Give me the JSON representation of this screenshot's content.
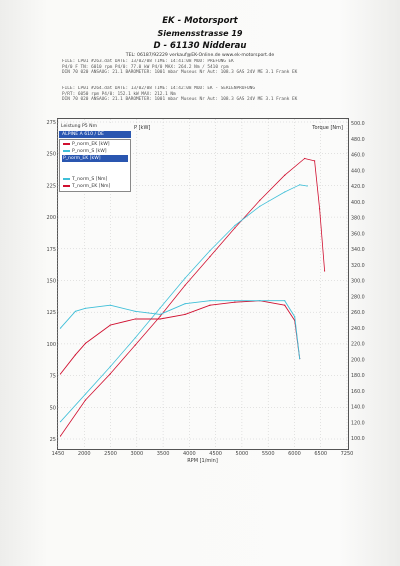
{
  "header": {
    "company": "EK - Motorsport",
    "street": "Siemensstrasse 19",
    "city": "D - 61130 Nidderau",
    "contact": "TEL: 06187/92229   verkauf@EK-Online.de   www.ek-motorsport.de"
  },
  "run_info_1": [
    "FILE: LP01 #263.dat  DATE: 13/02/08  TIME: 14:41:08  MOD: PREFUNG EK",
    "P4/0 F TN: 6010 rpm  P4/0: 77.0 kW  P4/0 MAX: 264.2 Nm / 5410 rpm",
    "DIN 70 020  ANSAUG: 21.1  BAROMETER: 1001 mbar  Museus Nr  Aut: 108.3 GAS 24V ME 3.1  Frank EK",
    ""
  ],
  "run_info_2": [
    "FILE: LP01 #264.dat  DATE: 13/02/08  TIME: 14:42:08  MOD: EK - SERIENPRUFUNG",
    "P/RT: 6050 rpm  P4/0: 152.1 kW  MAX: 212.1 Nm",
    "DIN 70 020  ANSAUG: 21.1  BAROMETER: 1001 mbar  Museus Nr  Aut: 108.3 GAS 24V ME 3.1  Frank EK",
    ""
  ],
  "chart_data": {
    "type": "line",
    "legend_title": "Leistung P5 Nm",
    "run_label": "ALPINE A 610 / DE",
    "legend_selected": "P_norm_EK [kW]",
    "xlabel": "RPM [1/min]",
    "x_ticks": [
      "1450",
      "2000",
      "2500",
      "3000",
      "3500",
      "4000",
      "4500",
      "5000",
      "5500",
      "6000",
      "6500",
      "7250"
    ],
    "xlim": [
      1450,
      7250
    ],
    "ylabel_left": "P [kW]",
    "ylabel_right": "Torque [Nm]",
    "left_ticks": [
      "275",
      "250",
      "225",
      "200",
      "175",
      "150",
      "125",
      "100",
      "75",
      "50",
      "25"
    ],
    "ylim_left": [
      0,
      275
    ],
    "right_ticks": [
      "500.0",
      "480.0",
      "460.0",
      "440.0",
      "420.0",
      "400.0",
      "380.0",
      "360.0",
      "340.0",
      "320.0",
      "300.0",
      "280.0",
      "260.0",
      "240.0",
      "220.0",
      "200.0",
      "180.0",
      "160.0",
      "140.0",
      "120.0",
      "100.0"
    ],
    "ylim_right": [
      82.9,
      514.1
    ],
    "series": [
      {
        "name": "P_norm_EK [kW]",
        "color": "#d01030",
        "axis": "left",
        "x": [
          1500,
          2000,
          2500,
          3000,
          3500,
          4000,
          4500,
          5000,
          5500,
          6000,
          6400,
          6600,
          6700,
          6800
        ],
        "y": [
          10,
          40,
          62,
          86,
          110,
          136,
          160,
          184,
          207,
          228,
          242,
          240,
          200,
          148
        ]
      },
      {
        "name": "P_norm_S [kW]",
        "color": "#3fbfd8",
        "axis": "left",
        "x": [
          1500,
          2000,
          2500,
          3000,
          3500,
          4000,
          4500,
          5000,
          5500,
          6000,
          6300,
          6450
        ],
        "y": [
          22,
          45,
          68,
          92,
          117,
          142,
          165,
          186,
          202,
          214,
          220,
          219
        ]
      },
      {
        "name": "T_norm_EK [Nm]",
        "color": "#d01030",
        "axis": "right",
        "x": [
          1500,
          1800,
          2000,
          2500,
          3000,
          3500,
          4000,
          4500,
          5000,
          5500,
          6000,
          6200,
          6300
        ],
        "y": [
          180,
          205,
          220,
          244,
          252,
          252,
          258,
          270,
          274,
          276,
          270,
          250,
          200
        ]
      },
      {
        "name": "T_norm_S [Nm]",
        "color": "#3fbfd8",
        "axis": "right",
        "x": [
          1500,
          1800,
          2000,
          2500,
          3000,
          3500,
          4000,
          4500,
          5000,
          5500,
          6000,
          6200,
          6300
        ],
        "y": [
          240,
          262,
          266,
          270,
          262,
          258,
          272,
          276,
          276,
          276,
          276,
          255,
          200
        ]
      }
    ],
    "grid": true,
    "legend_position": "top-left"
  }
}
